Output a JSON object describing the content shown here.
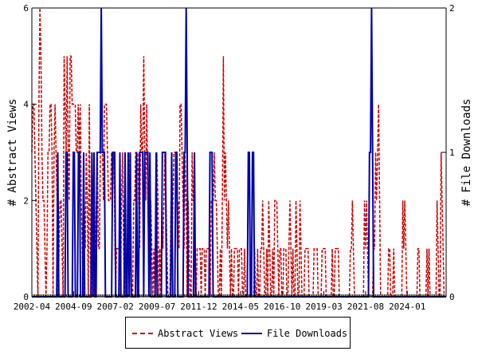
{
  "chart_data": {
    "type": "line",
    "xlabel": "",
    "y_left_label": "# Abstract Views",
    "y_right_label": "# File Downloads",
    "y_left_lim": [
      0,
      6
    ],
    "y_right_lim": [
      0,
      2
    ],
    "y_left_ticks": [
      "0",
      "2",
      "4",
      "6"
    ],
    "y_right_ticks": [
      "0",
      "1",
      "2"
    ],
    "x_ticks": [
      "2002-04",
      "2004-09",
      "2007-02",
      "2009-07",
      "2011-12",
      "2014-05",
      "2016-10",
      "2019-03",
      "2021-08",
      "2024-01"
    ],
    "x_range": [
      "2002-04",
      "2026-04"
    ],
    "grid": false,
    "legend_position": "bottom",
    "colors": {
      "abstract_views": "#cc0000",
      "file_downloads": "#0000aa"
    },
    "series": [
      {
        "name": "Abstract Views",
        "axis": "left",
        "style": "dashed",
        "values": [
          3,
          4,
          4,
          3,
          2,
          1,
          0,
          4,
          6,
          5,
          3,
          2,
          2,
          1,
          0,
          1,
          3,
          3,
          4,
          4,
          3,
          0,
          3,
          4,
          3,
          2,
          0,
          1,
          2,
          2,
          1,
          0,
          5,
          4,
          3,
          5,
          3,
          2,
          5,
          5,
          4,
          4,
          4,
          4,
          3,
          3,
          4,
          3,
          4,
          2,
          1,
          0,
          2,
          1,
          3,
          2,
          0,
          4,
          1,
          0,
          2,
          1,
          0,
          1,
          2,
          3,
          1,
          1,
          3,
          3,
          3,
          2,
          4,
          4,
          4,
          3,
          2,
          2,
          2,
          3,
          2,
          3,
          2,
          0,
          1,
          1,
          1,
          1,
          0,
          2,
          3,
          1,
          0,
          1,
          0,
          2,
          3,
          2,
          1,
          0,
          0,
          2,
          2,
          3,
          3,
          3,
          2,
          1,
          4,
          3,
          3,
          5,
          3,
          2,
          4,
          2,
          1,
          1,
          2,
          1,
          0,
          1,
          0,
          1,
          3,
          2,
          0,
          1,
          0,
          2,
          1,
          2,
          3,
          2,
          1,
          0,
          0,
          0,
          2,
          1,
          2,
          3,
          3,
          3,
          2,
          2,
          1,
          4,
          4,
          3,
          2,
          1,
          3,
          2,
          0,
          2,
          1,
          0,
          0,
          3,
          2,
          2,
          1,
          0,
          1,
          1,
          1,
          1,
          0,
          1,
          1,
          1,
          0,
          1,
          1,
          1,
          1,
          0,
          2,
          2,
          2,
          3,
          2,
          2,
          1,
          0,
          0,
          1,
          0,
          2,
          5,
          2,
          3,
          2,
          1,
          2,
          1,
          0,
          1,
          0,
          0,
          1,
          1,
          1,
          1,
          0,
          1,
          1,
          1,
          0,
          0,
          1,
          0,
          0,
          0,
          0,
          0,
          0,
          0,
          0,
          0,
          1,
          0,
          0,
          1,
          0,
          0,
          1,
          1,
          2,
          1,
          0,
          0,
          1,
          0,
          2,
          1,
          0,
          0,
          1,
          0,
          2,
          2,
          2,
          1,
          0,
          1,
          1,
          0,
          0,
          1,
          1,
          1,
          0,
          0,
          1,
          2,
          1,
          0,
          1,
          0,
          0,
          2,
          1,
          0,
          0,
          2,
          1,
          0,
          0,
          0,
          1,
          1,
          1,
          1,
          0,
          0,
          0,
          0,
          0,
          1,
          1,
          1,
          1,
          0,
          0,
          0,
          0,
          1,
          1,
          1,
          1,
          0,
          0,
          0,
          0,
          0,
          0,
          1,
          0,
          0,
          1,
          1,
          1,
          1,
          0,
          0,
          0,
          0,
          0,
          0,
          0,
          0,
          0,
          0,
          0,
          1,
          1,
          2,
          1,
          0,
          0,
          0,
          0,
          0,
          0,
          0,
          0,
          0,
          0,
          2,
          1,
          2,
          1,
          0,
          0,
          0,
          0,
          0,
          1,
          1,
          3,
          2,
          3,
          4,
          2,
          0,
          0,
          0,
          0,
          0,
          0,
          0,
          0,
          1,
          1,
          0,
          0,
          0,
          1,
          0,
          0,
          0,
          0,
          0,
          0,
          0,
          0,
          2,
          1,
          2,
          1,
          0,
          0,
          0,
          0,
          0,
          0,
          0,
          0,
          0,
          0,
          0,
          1,
          1,
          0,
          0,
          0,
          0,
          0,
          0,
          0,
          1,
          0,
          1,
          0,
          0,
          0,
          0,
          0,
          0,
          0,
          2,
          1,
          0,
          0,
          3,
          2,
          1,
          0,
          0,
          0
        ]
      },
      {
        "name": "File Downloads",
        "axis": "right",
        "style": "solid",
        "values": [
          0,
          0,
          0,
          0,
          0,
          0,
          0,
          0,
          0,
          0,
          0,
          0,
          0,
          0,
          0,
          0,
          0,
          0,
          0,
          0,
          0,
          0,
          0,
          0,
          0,
          1,
          0,
          0,
          0,
          0,
          0,
          0,
          0,
          1,
          1,
          0,
          0,
          0,
          0,
          0,
          1,
          1,
          0,
          0,
          0,
          1,
          1,
          0,
          0,
          0,
          1,
          0,
          0,
          0,
          0,
          0,
          0,
          0,
          1,
          0,
          1,
          0,
          0,
          1,
          1,
          1,
          1,
          2,
          1,
          1,
          1,
          0,
          0,
          0,
          0,
          0,
          0,
          0,
          1,
          1,
          1,
          0,
          0,
          0,
          0,
          1,
          0,
          0,
          0,
          0,
          1,
          0,
          0,
          1,
          0,
          1,
          0,
          0,
          0,
          0,
          0,
          1,
          0,
          0,
          1,
          1,
          1,
          1,
          0,
          1,
          1,
          1,
          1,
          0,
          1,
          0,
          0,
          0,
          0,
          0,
          1,
          0,
          0,
          0,
          0,
          0,
          1,
          1,
          1,
          1,
          0,
          0,
          0,
          0,
          0,
          1,
          0,
          0,
          0,
          1,
          1,
          0,
          0,
          0,
          0,
          0,
          0,
          1,
          1,
          2,
          1,
          0,
          0,
          0,
          0,
          0,
          0,
          1,
          0,
          0,
          0,
          0,
          0,
          0,
          0,
          0,
          0,
          0,
          0,
          0,
          0,
          0,
          1,
          1,
          1,
          0,
          0,
          0,
          0,
          0,
          0,
          0,
          0,
          0,
          0,
          0,
          0,
          0,
          0,
          0,
          0,
          0,
          0,
          0,
          0,
          0,
          0,
          0,
          0,
          0,
          0,
          0,
          0,
          0,
          0,
          0,
          0,
          0,
          0,
          1,
          1,
          0,
          0,
          1,
          1,
          0,
          0,
          0,
          0,
          0,
          0,
          0,
          0,
          0,
          0,
          0,
          0,
          0,
          0,
          0,
          0,
          0,
          0,
          0,
          0,
          0,
          0,
          0,
          0,
          0,
          0,
          0,
          0,
          0,
          0,
          0,
          0,
          0,
          0,
          0,
          0,
          0,
          0,
          0,
          0,
          0,
          0,
          0,
          0,
          0,
          0,
          0,
          0,
          0,
          0,
          0,
          0,
          0,
          0,
          0,
          0,
          0,
          0,
          0,
          0,
          0,
          0,
          0,
          0,
          0,
          0,
          0,
          0,
          0,
          0,
          0,
          0,
          0,
          0,
          0,
          0,
          0,
          0,
          0,
          0,
          0,
          0,
          0,
          0,
          0,
          0,
          0,
          0,
          0,
          0,
          0,
          0,
          0,
          0,
          0,
          0,
          0,
          0,
          0,
          0,
          0,
          0,
          0,
          0,
          0,
          0,
          0,
          0,
          0,
          0,
          0,
          1,
          1,
          2,
          1,
          0,
          0,
          0,
          0,
          0,
          0,
          0,
          0,
          0,
          0,
          0,
          0,
          0,
          0,
          0,
          0,
          0,
          0,
          0,
          0,
          0,
          0,
          0,
          0,
          0,
          0,
          0,
          0,
          0,
          0,
          0,
          0,
          0,
          0,
          0,
          0,
          0,
          0,
          0,
          0,
          0,
          0,
          0,
          0,
          0,
          0,
          0,
          0,
          0,
          0,
          0,
          0,
          0,
          0,
          0,
          0,
          0,
          0,
          0,
          0,
          0,
          0,
          0,
          0,
          0,
          0,
          0,
          0,
          0,
          0,
          0
        ]
      }
    ]
  }
}
